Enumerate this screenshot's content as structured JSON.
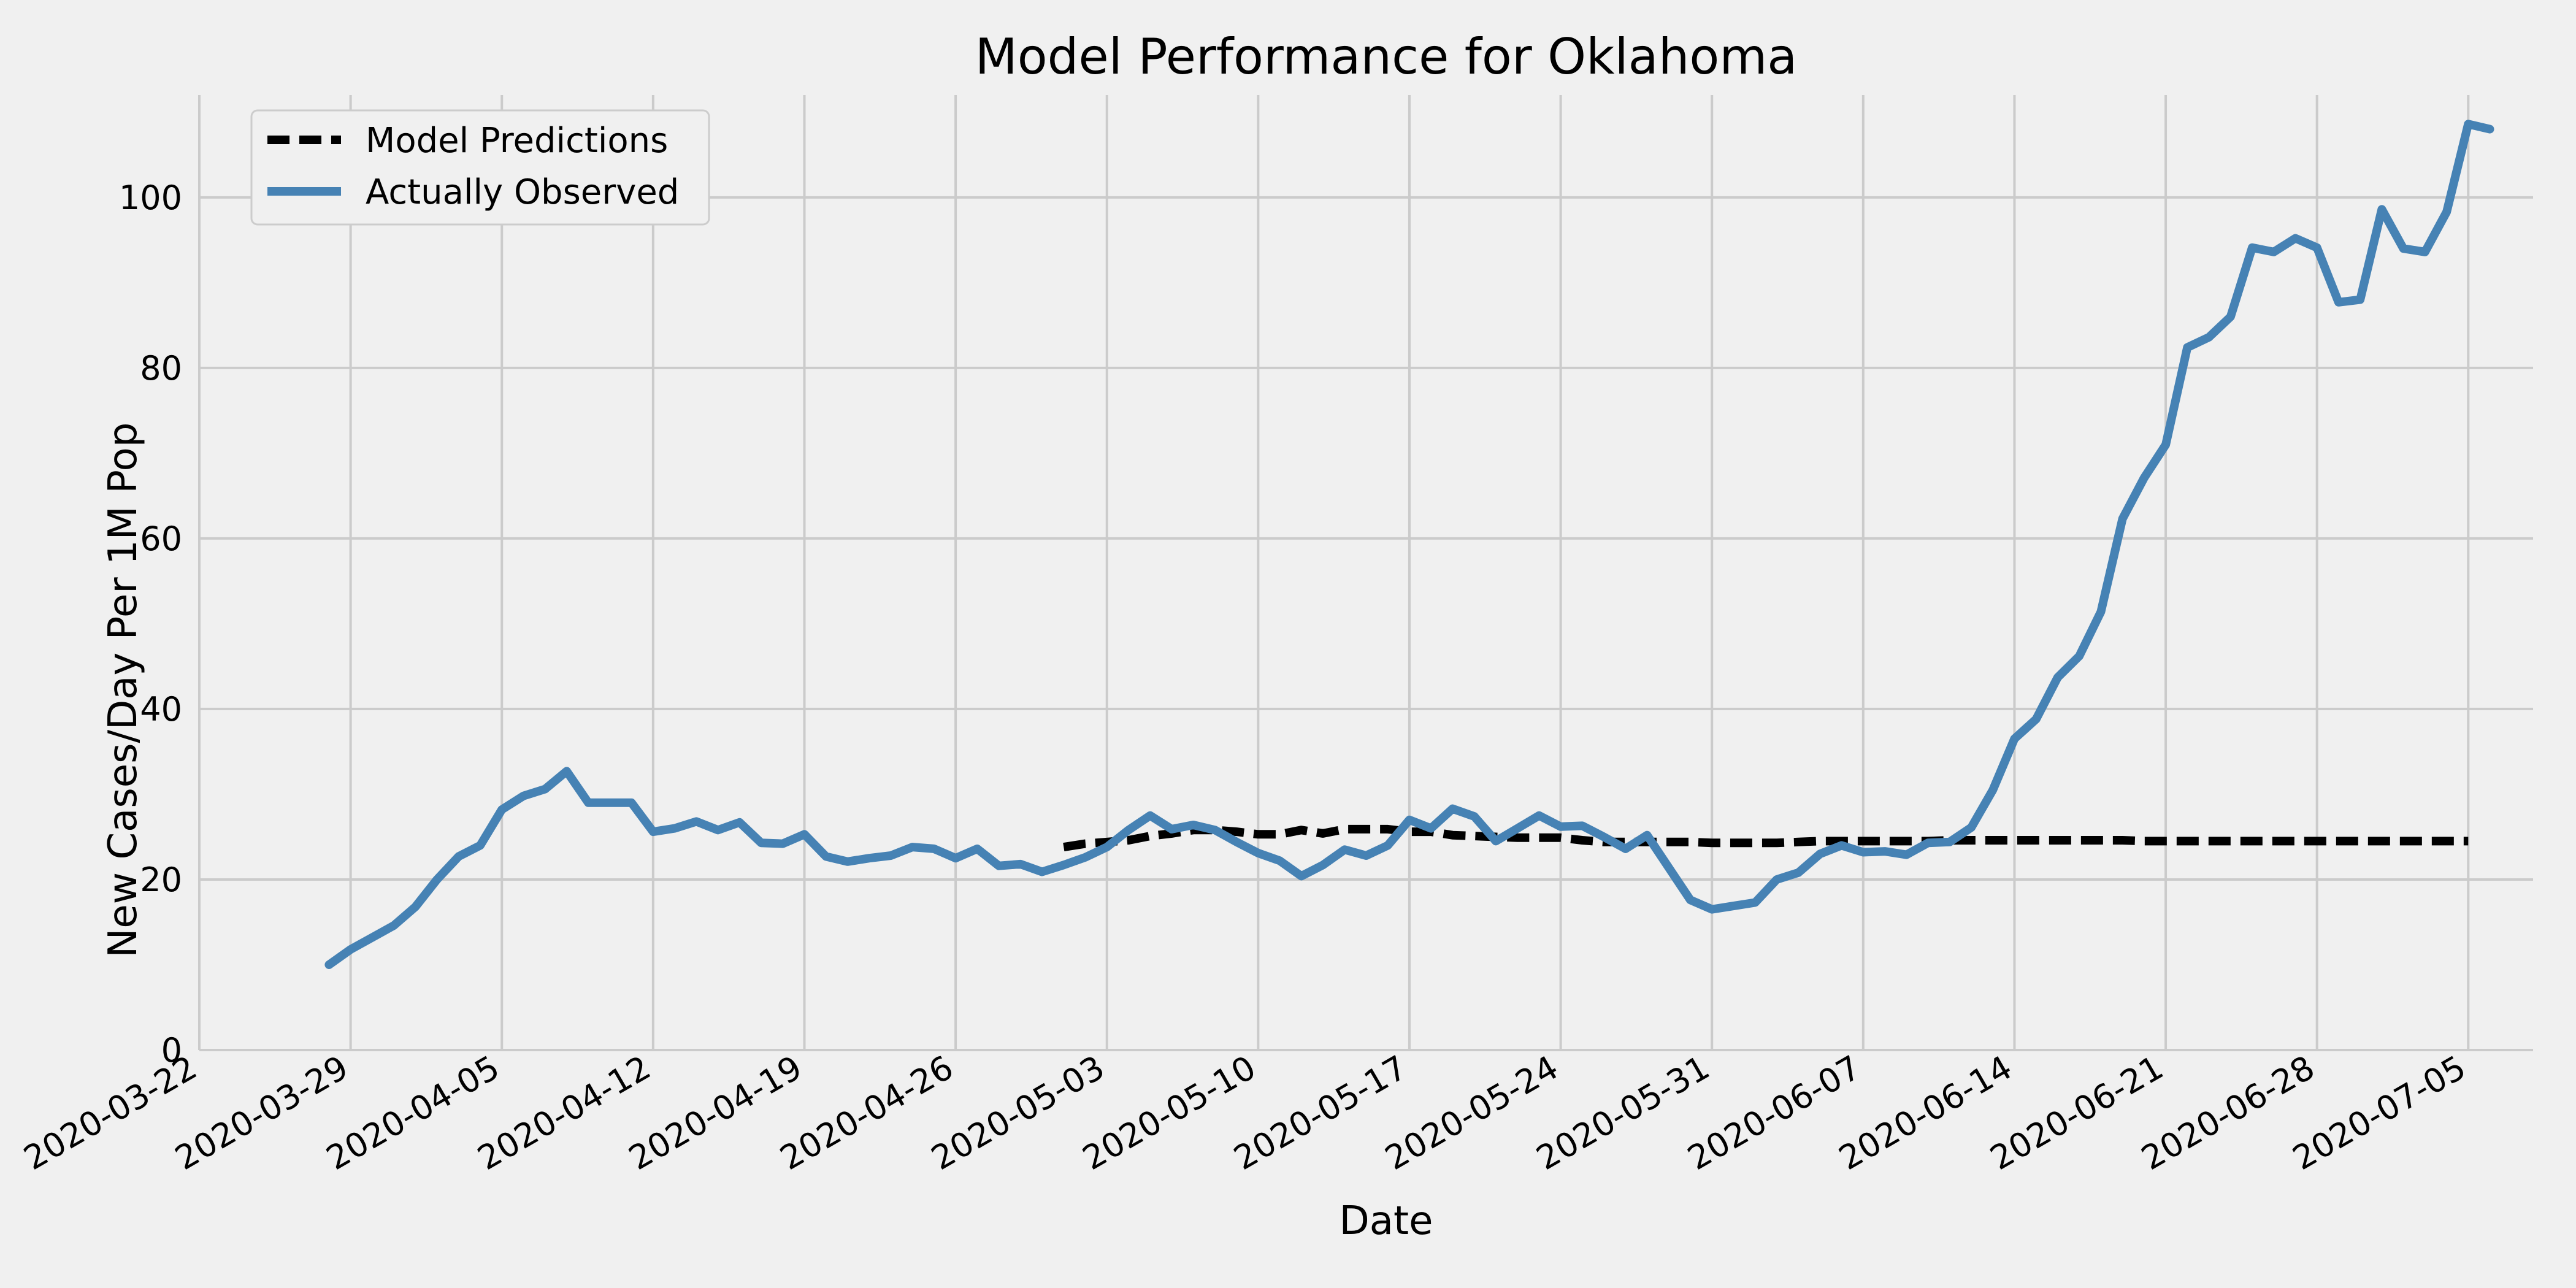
{
  "chart_data": {
    "type": "line",
    "title": "Model Performance for Oklahoma",
    "xlabel": "Date",
    "ylabel": "New Cases/Day Per 1M Pop",
    "ylim": [
      0,
      112
    ],
    "xlim": [
      "2020-03-22",
      "2020-07-08"
    ],
    "y_ticks": [
      0,
      20,
      40,
      60,
      80,
      100
    ],
    "x_ticks": [
      "2020-03-22",
      "2020-03-29",
      "2020-04-05",
      "2020-04-12",
      "2020-04-19",
      "2020-04-26",
      "2020-05-03",
      "2020-05-10",
      "2020-05-17",
      "2020-05-24",
      "2020-05-31",
      "2020-06-07",
      "2020-06-14",
      "2020-06-21",
      "2020-06-28",
      "2020-07-05"
    ],
    "grid": true,
    "legend": "top-left",
    "series": [
      {
        "name": "Model Predictions",
        "color": "#000000",
        "style": "dashed",
        "points": [
          [
            "2020-05-01",
            23.8
          ],
          [
            "2020-05-02",
            24.2
          ],
          [
            "2020-05-03",
            24.4
          ],
          [
            "2020-05-04",
            24.6
          ],
          [
            "2020-05-05",
            25.1
          ],
          [
            "2020-05-06",
            25.4
          ],
          [
            "2020-05-07",
            25.8
          ],
          [
            "2020-05-08",
            25.8
          ],
          [
            "2020-05-09",
            25.6
          ],
          [
            "2020-05-10",
            25.3
          ],
          [
            "2020-05-11",
            25.3
          ],
          [
            "2020-05-12",
            25.8
          ],
          [
            "2020-05-13",
            25.4
          ],
          [
            "2020-05-14",
            25.9
          ],
          [
            "2020-05-15",
            25.9
          ],
          [
            "2020-05-16",
            25.9
          ],
          [
            "2020-05-17",
            25.6
          ],
          [
            "2020-05-18",
            25.6
          ],
          [
            "2020-05-19",
            25.2
          ],
          [
            "2020-05-20",
            25.1
          ],
          [
            "2020-05-21",
            25.0
          ],
          [
            "2020-05-22",
            24.9
          ],
          [
            "2020-05-23",
            24.9
          ],
          [
            "2020-05-24",
            24.9
          ],
          [
            "2020-05-25",
            24.6
          ],
          [
            "2020-05-26",
            24.4
          ],
          [
            "2020-05-27",
            24.4
          ],
          [
            "2020-05-28",
            24.4
          ],
          [
            "2020-05-29",
            24.4
          ],
          [
            "2020-05-30",
            24.4
          ],
          [
            "2020-05-31",
            24.3
          ],
          [
            "2020-06-01",
            24.3
          ],
          [
            "2020-06-02",
            24.3
          ],
          [
            "2020-06-03",
            24.3
          ],
          [
            "2020-06-04",
            24.4
          ],
          [
            "2020-06-05",
            24.5
          ],
          [
            "2020-06-06",
            24.5
          ],
          [
            "2020-06-07",
            24.5
          ],
          [
            "2020-06-08",
            24.5
          ],
          [
            "2020-06-09",
            24.5
          ],
          [
            "2020-06-10",
            24.5
          ],
          [
            "2020-06-11",
            24.6
          ],
          [
            "2020-06-12",
            24.6
          ],
          [
            "2020-06-13",
            24.6
          ],
          [
            "2020-06-14",
            24.6
          ],
          [
            "2020-06-15",
            24.6
          ],
          [
            "2020-06-16",
            24.6
          ],
          [
            "2020-06-17",
            24.6
          ],
          [
            "2020-06-18",
            24.6
          ],
          [
            "2020-06-19",
            24.6
          ],
          [
            "2020-06-20",
            24.5
          ],
          [
            "2020-06-21",
            24.5
          ],
          [
            "2020-06-22",
            24.5
          ],
          [
            "2020-06-23",
            24.5
          ],
          [
            "2020-06-24",
            24.5
          ],
          [
            "2020-06-25",
            24.5
          ],
          [
            "2020-06-26",
            24.5
          ],
          [
            "2020-06-27",
            24.5
          ],
          [
            "2020-06-28",
            24.5
          ],
          [
            "2020-06-29",
            24.5
          ],
          [
            "2020-06-30",
            24.5
          ],
          [
            "2020-07-01",
            24.5
          ],
          [
            "2020-07-02",
            24.5
          ],
          [
            "2020-07-03",
            24.5
          ],
          [
            "2020-07-04",
            24.5
          ],
          [
            "2020-07-05",
            24.5
          ]
        ]
      },
      {
        "name": "Actually Observed",
        "color": "#4682b4",
        "style": "solid",
        "points": [
          [
            "2020-03-28",
            10.0
          ],
          [
            "2020-03-29",
            11.8
          ],
          [
            "2020-03-30",
            13.2
          ],
          [
            "2020-03-31",
            14.6
          ],
          [
            "2020-04-01",
            16.8
          ],
          [
            "2020-04-02",
            20.0
          ],
          [
            "2020-04-03",
            22.7
          ],
          [
            "2020-04-04",
            24.0
          ],
          [
            "2020-04-05",
            28.2
          ],
          [
            "2020-04-06",
            29.8
          ],
          [
            "2020-04-07",
            30.6
          ],
          [
            "2020-04-08",
            32.7
          ],
          [
            "2020-04-09",
            29.0
          ],
          [
            "2020-04-10",
            29.0
          ],
          [
            "2020-04-11",
            29.0
          ],
          [
            "2020-04-12",
            25.6
          ],
          [
            "2020-04-13",
            26.0
          ],
          [
            "2020-04-14",
            26.8
          ],
          [
            "2020-04-15",
            25.8
          ],
          [
            "2020-04-16",
            26.7
          ],
          [
            "2020-04-17",
            24.3
          ],
          [
            "2020-04-18",
            24.2
          ],
          [
            "2020-04-19",
            25.3
          ],
          [
            "2020-04-20",
            22.7
          ],
          [
            "2020-04-21",
            22.1
          ],
          [
            "2020-04-22",
            22.5
          ],
          [
            "2020-04-23",
            22.8
          ],
          [
            "2020-04-24",
            23.8
          ],
          [
            "2020-04-25",
            23.6
          ],
          [
            "2020-04-26",
            22.5
          ],
          [
            "2020-04-27",
            23.6
          ],
          [
            "2020-04-28",
            21.6
          ],
          [
            "2020-04-29",
            21.8
          ],
          [
            "2020-04-30",
            20.9
          ],
          [
            "2020-05-01",
            21.7
          ],
          [
            "2020-05-02",
            22.6
          ],
          [
            "2020-05-03",
            23.8
          ],
          [
            "2020-05-04",
            25.8
          ],
          [
            "2020-05-05",
            27.5
          ],
          [
            "2020-05-06",
            25.9
          ],
          [
            "2020-05-07",
            26.4
          ],
          [
            "2020-05-08",
            25.8
          ],
          [
            "2020-05-09",
            24.4
          ],
          [
            "2020-05-10",
            23.1
          ],
          [
            "2020-05-11",
            22.2
          ],
          [
            "2020-05-12",
            20.4
          ],
          [
            "2020-05-13",
            21.7
          ],
          [
            "2020-05-14",
            23.5
          ],
          [
            "2020-05-15",
            22.8
          ],
          [
            "2020-05-16",
            24.0
          ],
          [
            "2020-05-17",
            27.0
          ],
          [
            "2020-05-18",
            26.0
          ],
          [
            "2020-05-19",
            28.3
          ],
          [
            "2020-05-20",
            27.4
          ],
          [
            "2020-05-21",
            24.5
          ],
          [
            "2020-05-22",
            26.0
          ],
          [
            "2020-05-23",
            27.5
          ],
          [
            "2020-05-24",
            26.2
          ],
          [
            "2020-05-25",
            26.3
          ],
          [
            "2020-05-26",
            25.0
          ],
          [
            "2020-05-27",
            23.6
          ],
          [
            "2020-05-28",
            25.2
          ],
          [
            "2020-05-29",
            21.4
          ],
          [
            "2020-05-30",
            17.6
          ],
          [
            "2020-05-31",
            16.5
          ],
          [
            "2020-06-01",
            16.9
          ],
          [
            "2020-06-02",
            17.3
          ],
          [
            "2020-06-03",
            20.0
          ],
          [
            "2020-06-04",
            20.8
          ],
          [
            "2020-06-05",
            23.0
          ],
          [
            "2020-06-06",
            24.0
          ],
          [
            "2020-06-07",
            23.2
          ],
          [
            "2020-06-08",
            23.3
          ],
          [
            "2020-06-09",
            22.9
          ],
          [
            "2020-06-10",
            24.3
          ],
          [
            "2020-06-11",
            24.4
          ],
          [
            "2020-06-12",
            26.1
          ],
          [
            "2020-06-13",
            30.5
          ],
          [
            "2020-06-14",
            36.5
          ],
          [
            "2020-06-15",
            38.8
          ],
          [
            "2020-06-16",
            43.7
          ],
          [
            "2020-06-17",
            46.2
          ],
          [
            "2020-06-18",
            51.4
          ],
          [
            "2020-06-19",
            62.3
          ],
          [
            "2020-06-20",
            67.1
          ],
          [
            "2020-06-21",
            71.0
          ],
          [
            "2020-06-22",
            82.4
          ],
          [
            "2020-06-23",
            83.6
          ],
          [
            "2020-06-24",
            86.0
          ],
          [
            "2020-06-25",
            94.1
          ],
          [
            "2020-06-26",
            93.6
          ],
          [
            "2020-06-27",
            95.2
          ],
          [
            "2020-06-28",
            94.1
          ],
          [
            "2020-06-29",
            87.7
          ],
          [
            "2020-06-30",
            88.0
          ],
          [
            "2020-07-01",
            98.6
          ],
          [
            "2020-07-02",
            94.0
          ],
          [
            "2020-07-03",
            93.6
          ],
          [
            "2020-07-04",
            98.3
          ],
          [
            "2020-07-05",
            108.6
          ],
          [
            "2020-07-06",
            108.0
          ]
        ]
      }
    ]
  }
}
